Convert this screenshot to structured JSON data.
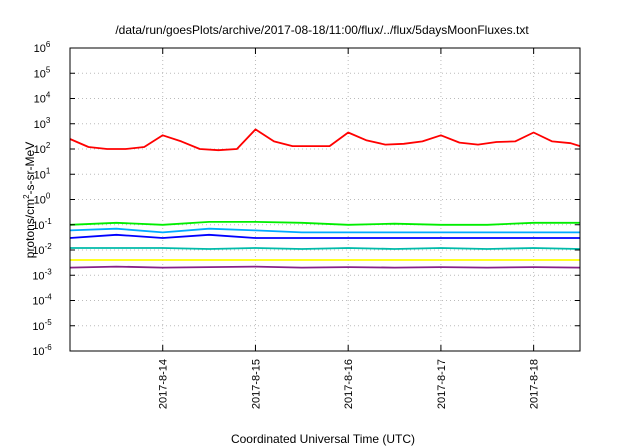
{
  "chart_data": {
    "type": "line",
    "title": "/data/run/goesPlots/archive/2017-08-18/11:00/flux/../flux/5daysMoonFluxes.txt",
    "xlabel": "Coordinated Universal Time (UTC)",
    "ylabel": {
      "prefix": "protons/cm",
      "sup": "2",
      "suffix": "-s-sr-MeV"
    },
    "yscale": "log",
    "ylim_exp": [
      -6,
      6
    ],
    "y_ticks": [
      {
        "base": "10",
        "exp": "-6"
      },
      {
        "base": "10",
        "exp": "-5"
      },
      {
        "base": "10",
        "exp": "-4"
      },
      {
        "base": "10",
        "exp": "-3"
      },
      {
        "base": "10",
        "exp": "-2"
      },
      {
        "base": "10",
        "exp": "-1"
      },
      {
        "base": "10",
        "exp": "0"
      },
      {
        "base": "10",
        "exp": "1"
      },
      {
        "base": "10",
        "exp": "2"
      },
      {
        "base": "10",
        "exp": "3"
      },
      {
        "base": "10",
        "exp": "4"
      },
      {
        "base": "10",
        "exp": "5"
      },
      {
        "base": "10",
        "exp": "6"
      }
    ],
    "xlim_days": [
      13.0,
      18.5
    ],
    "x_ticks": [
      {
        "day": 14,
        "label": "2017-8-14"
      },
      {
        "day": 15,
        "label": "2017-8-15"
      },
      {
        "day": 16,
        "label": "2017-8-16"
      },
      {
        "day": 17,
        "label": "2017-8-17"
      },
      {
        "day": 18,
        "label": "2017-8-18"
      }
    ],
    "grid": "dotted",
    "series": [
      {
        "color": "#ff0000",
        "x": [
          13.0,
          13.2,
          13.4,
          13.6,
          13.8,
          14.0,
          14.2,
          14.4,
          14.6,
          14.8,
          15.0,
          15.2,
          15.4,
          15.6,
          15.8,
          16.0,
          16.2,
          16.4,
          16.6,
          16.8,
          17.0,
          17.2,
          17.4,
          17.6,
          17.8,
          18.0,
          18.2,
          18.4,
          18.5
        ],
        "y": [
          250,
          120,
          100,
          100,
          120,
          350,
          200,
          100,
          90,
          100,
          600,
          200,
          130,
          130,
          130,
          450,
          220,
          150,
          160,
          200,
          350,
          180,
          150,
          190,
          200,
          450,
          200,
          170,
          130
        ]
      },
      {
        "color": "#00ee00",
        "x": [
          13.0,
          13.5,
          14.0,
          14.5,
          15.0,
          15.5,
          16.0,
          16.5,
          17.0,
          17.5,
          18.0,
          18.5
        ],
        "y": [
          0.1,
          0.12,
          0.1,
          0.13,
          0.13,
          0.12,
          0.1,
          0.11,
          0.1,
          0.1,
          0.12,
          0.12
        ]
      },
      {
        "color": "#00aaff",
        "x": [
          13.0,
          13.5,
          14.0,
          14.5,
          15.0,
          15.5,
          16.0,
          16.5,
          17.0,
          17.5,
          18.0,
          18.5
        ],
        "y": [
          0.06,
          0.07,
          0.05,
          0.07,
          0.06,
          0.05,
          0.05,
          0.05,
          0.05,
          0.05,
          0.05,
          0.05
        ]
      },
      {
        "color": "#0000ff",
        "x": [
          13.0,
          13.5,
          14.0,
          14.5,
          15.0,
          15.5,
          16.0,
          16.5,
          17.0,
          17.5,
          18.0,
          18.5
        ],
        "y": [
          0.03,
          0.04,
          0.03,
          0.04,
          0.03,
          0.03,
          0.03,
          0.03,
          0.03,
          0.03,
          0.03,
          0.03
        ]
      },
      {
        "color": "#00bbaa",
        "x": [
          13.0,
          13.5,
          14.0,
          14.5,
          15.0,
          15.5,
          16.0,
          16.5,
          17.0,
          17.5,
          18.0,
          18.5
        ],
        "y": [
          0.012,
          0.012,
          0.012,
          0.011,
          0.012,
          0.011,
          0.012,
          0.011,
          0.012,
          0.011,
          0.012,
          0.011
        ]
      },
      {
        "color": "#ffff00",
        "x": [
          13.0,
          13.5,
          14.0,
          14.5,
          15.0,
          15.5,
          16.0,
          16.5,
          17.0,
          17.5,
          18.0,
          18.5
        ],
        "y": [
          0.004,
          0.004,
          0.004,
          0.004,
          0.004,
          0.004,
          0.004,
          0.004,
          0.004,
          0.004,
          0.004,
          0.004
        ]
      },
      {
        "color": "#882288",
        "x": [
          13.0,
          13.5,
          14.0,
          14.5,
          15.0,
          15.5,
          16.0,
          16.5,
          17.0,
          17.5,
          18.0,
          18.5
        ],
        "y": [
          0.002,
          0.0022,
          0.002,
          0.0021,
          0.0022,
          0.002,
          0.0021,
          0.002,
          0.0021,
          0.002,
          0.0021,
          0.002
        ]
      }
    ]
  }
}
